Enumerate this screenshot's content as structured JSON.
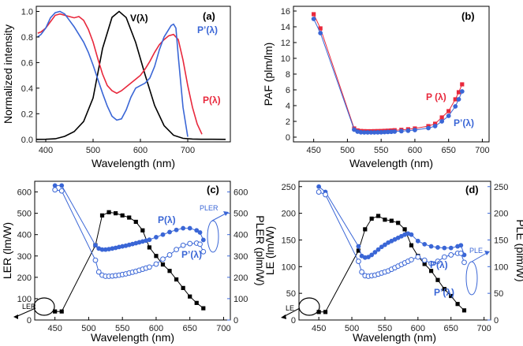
{
  "chart_data": [
    {
      "type": "line",
      "panel_label": "(a)",
      "xlabel": "Wavelength (nm)",
      "ylabel": "Normalized intensity",
      "xlim": [
        380,
        790
      ],
      "ylim": [
        -0.02,
        1.04
      ],
      "xticks": [
        400,
        500,
        600,
        700
      ],
      "yticks": [
        0.0,
        0.2,
        0.4,
        0.6,
        0.8,
        1.0
      ],
      "ytick_labels": [
        "0.0",
        "0.2",
        "0.4",
        "0.6",
        "0.8",
        "1.0"
      ],
      "series": [
        {
          "name": "V(λ)",
          "label": "V(λ)",
          "color": "#000000",
          "x": [
            380,
            400,
            420,
            440,
            460,
            480,
            500,
            520,
            540,
            555,
            570,
            590,
            610,
            630,
            650,
            670,
            690,
            710,
            730,
            750,
            780
          ],
          "y": [
            0,
            0.0004,
            0.004,
            0.023,
            0.06,
            0.139,
            0.323,
            0.71,
            0.954,
            1.0,
            0.952,
            0.757,
            0.503,
            0.265,
            0.107,
            0.032,
            0.008,
            0.002,
            0.0005,
            0.0001,
            0
          ]
        },
        {
          "name": "P(λ)",
          "label": "P(λ)",
          "color": "#e8283c",
          "x": [
            383,
            390,
            400,
            410,
            420,
            430,
            440,
            450,
            460,
            470,
            480,
            490,
            500,
            510,
            520,
            530,
            540,
            550,
            560,
            570,
            580,
            590,
            600,
            610,
            620,
            630,
            640,
            650,
            660,
            670,
            680,
            690,
            700,
            710,
            720,
            730
          ],
          "y": [
            0.83,
            0.84,
            0.87,
            0.92,
            0.97,
            0.98,
            0.97,
            0.96,
            0.95,
            0.96,
            0.93,
            0.86,
            0.76,
            0.63,
            0.51,
            0.42,
            0.38,
            0.36,
            0.38,
            0.41,
            0.44,
            0.47,
            0.5,
            0.55,
            0.61,
            0.68,
            0.74,
            0.78,
            0.81,
            0.82,
            0.78,
            0.62,
            0.42,
            0.25,
            0.12,
            0.04
          ]
        },
        {
          "name": "P'(λ)",
          "label": "P’(λ)",
          "color": "#3a66d6",
          "x": [
            383,
            390,
            400,
            410,
            420,
            430,
            440,
            450,
            460,
            470,
            480,
            490,
            500,
            510,
            520,
            530,
            540,
            550,
            560,
            570,
            580,
            590,
            600,
            610,
            620,
            630,
            640,
            650,
            660,
            665,
            670,
            675,
            680,
            690,
            700
          ],
          "y": [
            0.8,
            0.82,
            0.87,
            0.95,
            0.99,
            1.0,
            0.98,
            0.93,
            0.88,
            0.82,
            0.76,
            0.68,
            0.58,
            0.47,
            0.36,
            0.26,
            0.18,
            0.15,
            0.16,
            0.23,
            0.33,
            0.4,
            0.42,
            0.44,
            0.48,
            0.57,
            0.7,
            0.8,
            0.86,
            0.89,
            0.9,
            0.87,
            0.65,
            0.25,
            0.02
          ]
        }
      ]
    },
    {
      "type": "line",
      "panel_label": "(b)",
      "xlabel": "Wavelength (nm)",
      "ylabel": "PAF (plm/lm)",
      "xlim": [
        420,
        710
      ],
      "ylim": [
        -0.6,
        16.6
      ],
      "xticks": [
        450,
        500,
        550,
        600,
        650,
        700
      ],
      "yticks": [
        0,
        2,
        4,
        6,
        8,
        10,
        12,
        14,
        16
      ],
      "ytick_labels": [
        "0",
        "2",
        "4",
        "6",
        "8",
        "10",
        "12",
        "14",
        "16"
      ],
      "series": [
        {
          "name": "P(λ)",
          "label": "P (λ)",
          "color": "#e8283c",
          "marker": "square",
          "x": [
            450,
            460,
            510,
            515,
            520,
            525,
            530,
            535,
            540,
            545,
            550,
            555,
            560,
            565,
            570,
            580,
            590,
            600,
            620,
            630,
            640,
            650,
            660,
            665,
            670
          ],
          "y": [
            15.6,
            13.8,
            1.1,
            0.85,
            0.78,
            0.76,
            0.75,
            0.75,
            0.76,
            0.77,
            0.78,
            0.8,
            0.82,
            0.85,
            0.88,
            0.93,
            1.0,
            1.1,
            1.4,
            1.7,
            2.5,
            3.3,
            4.8,
            5.7,
            6.7
          ]
        },
        {
          "name": "P'(λ)",
          "label": "P’(λ)",
          "color": "#3a66d6",
          "marker": "circle",
          "x": [
            450,
            460,
            510,
            515,
            520,
            525,
            530,
            535,
            540,
            545,
            550,
            555,
            560,
            565,
            570,
            580,
            590,
            600,
            620,
            630,
            640,
            650,
            660,
            665,
            670
          ],
          "y": [
            15.0,
            13.2,
            0.95,
            0.7,
            0.62,
            0.6,
            0.6,
            0.6,
            0.6,
            0.61,
            0.62,
            0.64,
            0.66,
            0.68,
            0.71,
            0.76,
            0.82,
            0.9,
            1.15,
            1.4,
            2.0,
            2.7,
            3.9,
            4.8,
            5.8
          ]
        }
      ]
    },
    {
      "type": "line",
      "panel_label": "(c)",
      "xlabel": "Wavelength (nm)",
      "ylabel": "LER (lm/W)",
      "ylabel_right": "PLER (plm/W)",
      "xlim": [
        420,
        710
      ],
      "ylim": [
        0,
        650
      ],
      "ylim_right": [
        0,
        650
      ],
      "xticks": [
        450,
        500,
        550,
        600,
        650,
        700
      ],
      "yticks": [
        0,
        100,
        200,
        300,
        400,
        500,
        600
      ],
      "ytick_labels": [
        "0",
        "100",
        "200",
        "300",
        "400",
        "500",
        "600"
      ],
      "yticks_right": [
        0,
        100,
        200,
        300,
        400,
        500,
        600
      ],
      "ytick_labels_right": [
        "0",
        "100",
        "200",
        "300",
        "400",
        "500",
        "600"
      ],
      "annotations": {
        "left": "LER",
        "right": "PLER",
        "p": "P(λ)",
        "pp": "P’(λ)"
      },
      "series": [
        {
          "name": "LER",
          "axis": "left",
          "color": "#000000",
          "marker": "square",
          "x": [
            450,
            460,
            510,
            520,
            530,
            540,
            550,
            560,
            570,
            580,
            590,
            600,
            610,
            620,
            630,
            640,
            650,
            660,
            670
          ],
          "y": [
            40,
            40,
            350,
            490,
            505,
            500,
            490,
            480,
            460,
            420,
            340,
            300,
            260,
            230,
            190,
            150,
            110,
            80,
            55
          ]
        },
        {
          "name": "PLER P(λ)",
          "axis": "right",
          "color": "#3a66d6",
          "marker": "filled-circle",
          "x": [
            450,
            460,
            510,
            515,
            520,
            525,
            530,
            535,
            540,
            545,
            550,
            555,
            560,
            565,
            570,
            575,
            580,
            585,
            590,
            600,
            610,
            620,
            630,
            640,
            650,
            660,
            665,
            670
          ],
          "y": [
            630,
            630,
            350,
            335,
            330,
            330,
            332,
            335,
            338,
            342,
            345,
            348,
            352,
            356,
            360,
            364,
            368,
            372,
            376,
            388,
            400,
            412,
            422,
            430,
            430,
            420,
            410,
            375
          ]
        },
        {
          "name": "PLER P'(λ)",
          "axis": "right",
          "color": "#3a66d6",
          "marker": "open-circle",
          "x": [
            450,
            460,
            510,
            515,
            520,
            525,
            530,
            535,
            540,
            545,
            550,
            555,
            560,
            565,
            570,
            575,
            580,
            585,
            590,
            600,
            610,
            620,
            630,
            640,
            650,
            660,
            665,
            670
          ],
          "y": [
            610,
            605,
            280,
            225,
            210,
            205,
            205,
            206,
            208,
            210,
            213,
            216,
            220,
            224,
            228,
            233,
            238,
            243,
            248,
            262,
            285,
            305,
            330,
            350,
            358,
            360,
            355,
            320
          ]
        }
      ]
    },
    {
      "type": "line",
      "panel_label": "(d)",
      "xlabel": "Wavelength (nm)",
      "ylabel": "LE (lm/W)",
      "ylabel_right": "PLE (plm/W)",
      "xlim": [
        420,
        710
      ],
      "ylim": [
        0,
        260
      ],
      "ylim_right": [
        0,
        260
      ],
      "xticks": [
        450,
        500,
        550,
        600,
        650,
        700
      ],
      "yticks": [
        0,
        50,
        100,
        150,
        200,
        250
      ],
      "ytick_labels": [
        "0",
        "50",
        "100",
        "150",
        "200",
        "250"
      ],
      "yticks_right": [
        0,
        50,
        100,
        150,
        200,
        250
      ],
      "ytick_labels_right": [
        "0",
        "50",
        "100",
        "150",
        "200",
        "250"
      ],
      "annotations": {
        "left": "LE",
        "right": "PLE",
        "p": "P(λ)",
        "pp": "P’(λ)"
      },
      "series": [
        {
          "name": "LE",
          "axis": "left",
          "color": "#000000",
          "marker": "square",
          "x": [
            450,
            460,
            510,
            520,
            530,
            540,
            550,
            560,
            570,
            580,
            590,
            600,
            610,
            620,
            630,
            640,
            650,
            660,
            670
          ],
          "y": [
            15,
            15,
            130,
            170,
            190,
            195,
            188,
            186,
            182,
            170,
            140,
            120,
            105,
            92,
            75,
            58,
            45,
            30,
            18
          ]
        },
        {
          "name": "PLE P(λ)",
          "axis": "right",
          "color": "#3a66d6",
          "marker": "filled-circle",
          "x": [
            450,
            460,
            510,
            515,
            520,
            525,
            530,
            535,
            540,
            545,
            550,
            555,
            560,
            565,
            570,
            575,
            580,
            585,
            590,
            600,
            610,
            620,
            630,
            640,
            650,
            660,
            665,
            670
          ],
          "y": [
            250,
            240,
            138,
            120,
            117,
            118,
            122,
            127,
            132,
            137,
            141,
            145,
            148,
            151,
            154,
            157,
            160,
            162,
            160,
            148,
            142,
            138,
            136,
            135,
            135,
            138,
            140,
            122
          ]
        },
        {
          "name": "PLE P'(λ)",
          "axis": "right",
          "color": "#3a66d6",
          "marker": "open-circle",
          "x": [
            450,
            460,
            510,
            515,
            520,
            525,
            530,
            535,
            540,
            545,
            550,
            555,
            560,
            565,
            570,
            575,
            580,
            585,
            590,
            600,
            610,
            620,
            630,
            640,
            650,
            660,
            665,
            670
          ],
          "y": [
            240,
            235,
            110,
            90,
            83,
            82,
            83,
            84,
            86,
            88,
            90,
            92,
            95,
            98,
            101,
            104,
            107,
            110,
            113,
            118,
            112,
            106,
            110,
            118,
            122,
            125,
            125,
            108
          ]
        }
      ]
    }
  ]
}
